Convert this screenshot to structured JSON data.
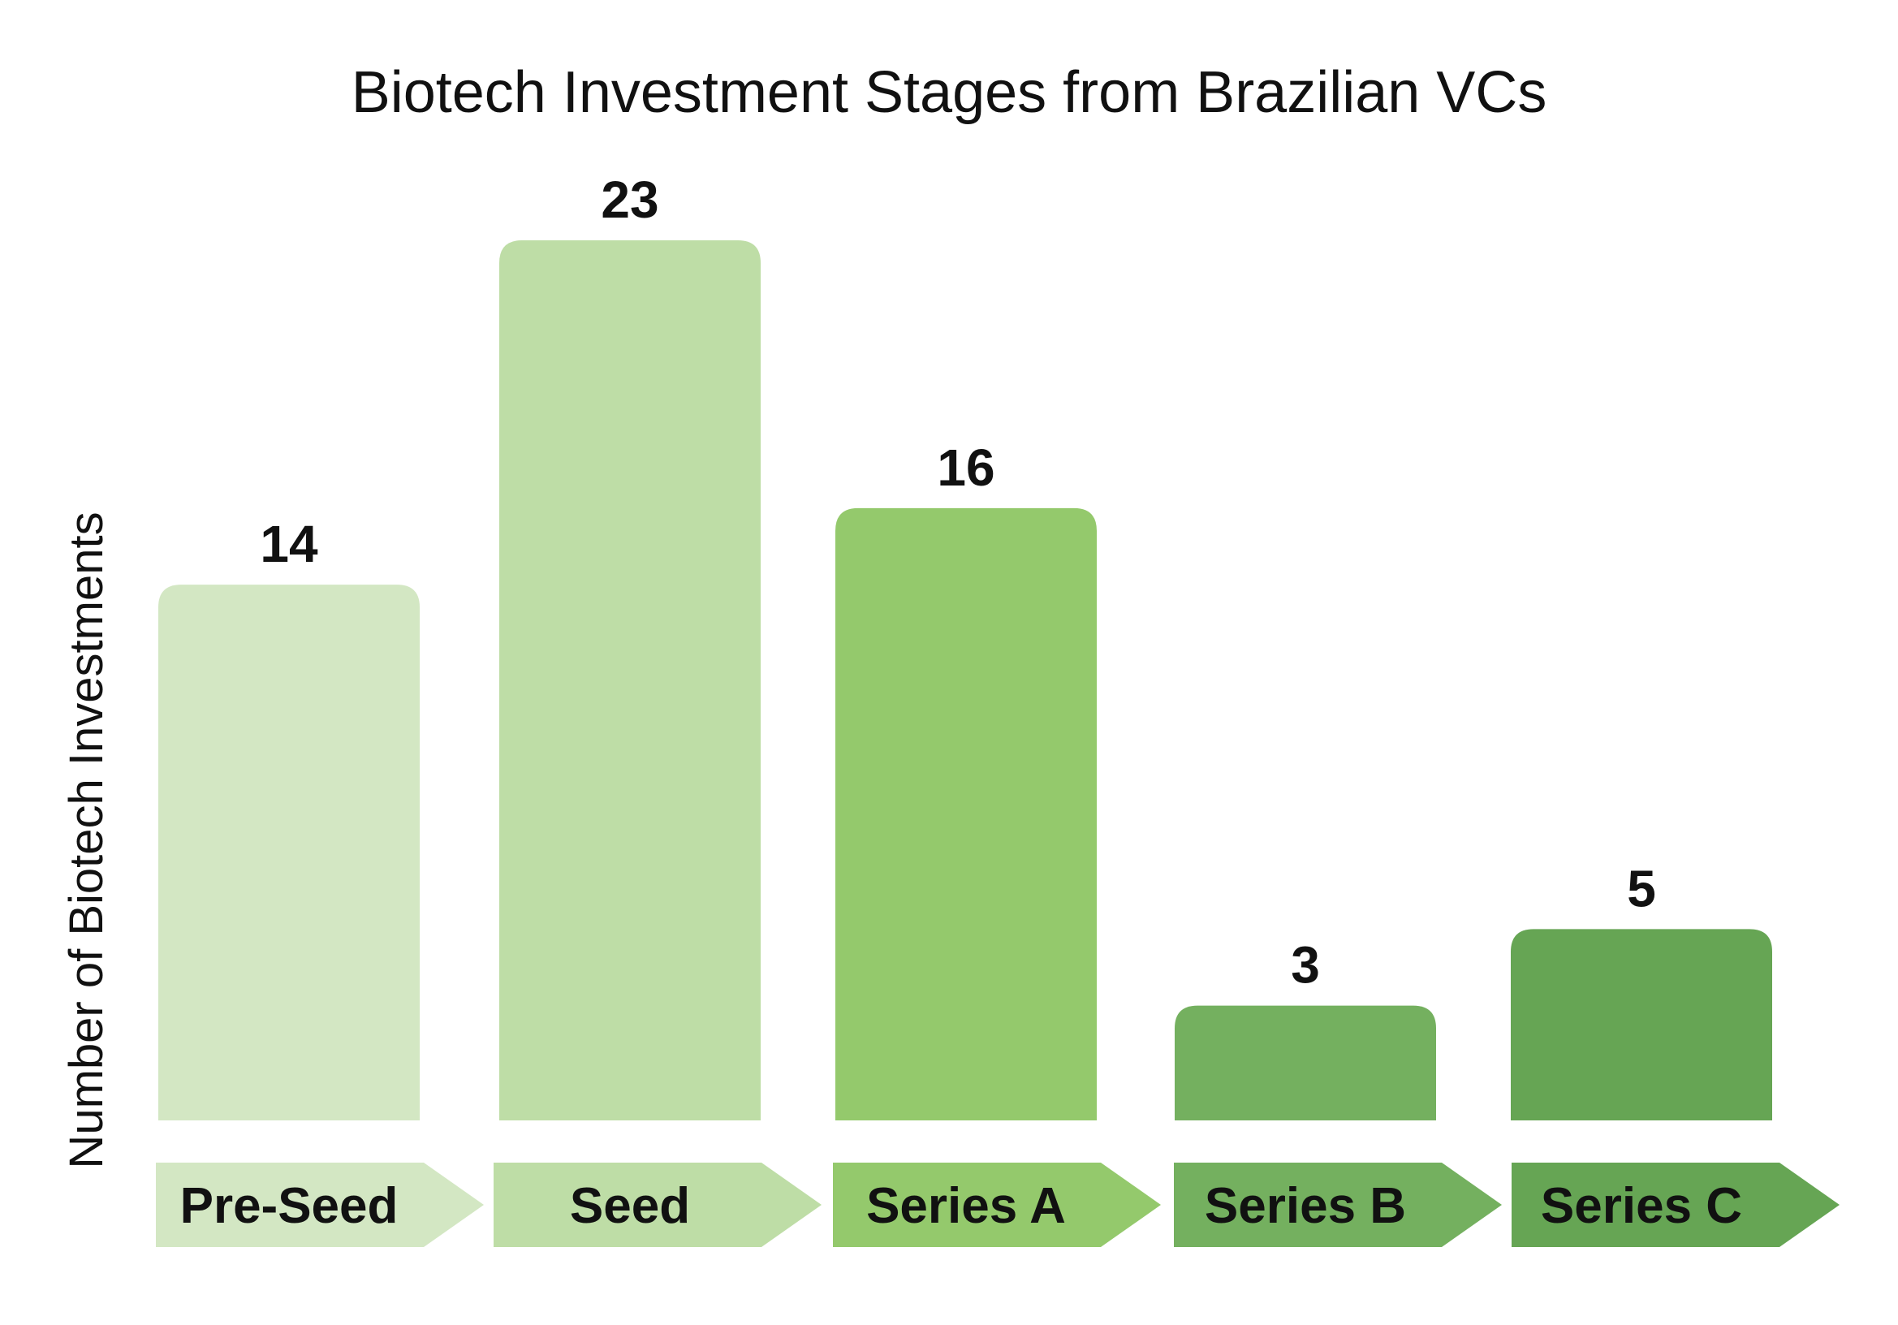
{
  "chart_data": {
    "type": "bar",
    "title": "Biotech Investment Stages from Brazilian VCs",
    "xlabel": "",
    "ylabel": "Number of Biotech Investments",
    "categories": [
      "Pre-Seed",
      "Seed",
      "Series A",
      "Series B",
      "Series C"
    ],
    "values": [
      14,
      23,
      16,
      3,
      5
    ],
    "ylim": [
      0,
      23
    ],
    "grid": false,
    "legend": "none",
    "colors": [
      "#d3e7c3",
      "#bedda6",
      "#94c96c",
      "#74b05f",
      "#66a554"
    ]
  }
}
